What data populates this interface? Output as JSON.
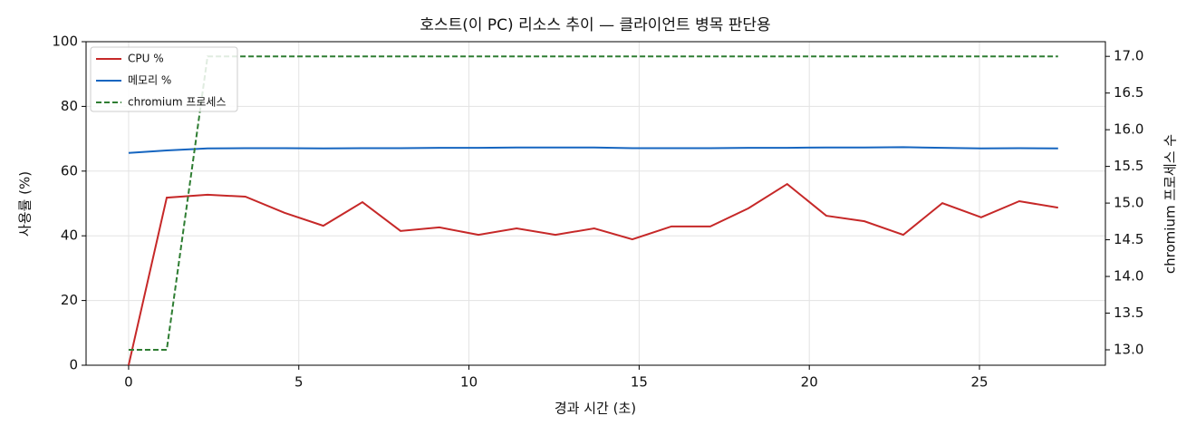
{
  "chart_data": {
    "type": "line",
    "title": "호스트(이 PC) 리소스 추이 — 클라이언트 병목 판단용",
    "xlabel": "경과 시간 (초)",
    "ylabel": "사용률 (%)",
    "y2label": "chromium 프로세스 수",
    "x": [
      0,
      1.12,
      2.32,
      3.43,
      4.58,
      5.72,
      6.87,
      7.99,
      9.13,
      10.28,
      11.4,
      12.54,
      13.68,
      14.8,
      15.95,
      17.09,
      18.21,
      19.35,
      20.5,
      21.62,
      22.76,
      23.91,
      25.05,
      26.17,
      27.31
    ],
    "series": [
      {
        "name": "CPU %",
        "color": "#c62828",
        "linestyle": "solid",
        "values": [
          0,
          51.8,
          52.7,
          52.1,
          47.1,
          43.1,
          50.4,
          41.5,
          42.6,
          40.3,
          42.3,
          40.3,
          42.3,
          38.9,
          42.9,
          42.9,
          48.5,
          56.0,
          46.2,
          44.5,
          40.3,
          50.1,
          45.7,
          50.7,
          48.7
        ]
      },
      {
        "name": "메모리 %",
        "color": "#1565c0",
        "linestyle": "solid",
        "values": [
          65.6,
          66.4,
          67.0,
          67.1,
          67.1,
          67.0,
          67.1,
          67.1,
          67.2,
          67.2,
          67.3,
          67.3,
          67.3,
          67.1,
          67.1,
          67.1,
          67.2,
          67.2,
          67.3,
          67.3,
          67.4,
          67.2,
          67.0,
          67.1,
          67.0
        ]
      },
      {
        "name": "chromium 프로세스",
        "color": "#2e7d32",
        "linestyle": "dashed",
        "axis": "y2",
        "values": [
          13,
          13,
          17,
          17,
          17,
          17,
          17,
          17,
          17,
          17,
          17,
          17,
          17,
          17,
          17,
          17,
          17,
          17,
          17,
          17,
          17,
          17,
          17,
          17,
          17
        ]
      }
    ],
    "xlim": [
      -1.25,
      28.7
    ],
    "xticks": [
      0,
      5,
      10,
      15,
      20,
      25
    ],
    "ylim": [
      0,
      100
    ],
    "yticks": [
      0,
      20,
      40,
      60,
      80,
      100
    ],
    "y2lim": [
      12.79,
      17.2
    ],
    "y2ticks": [
      {
        "value": 13,
        "label": "13.0"
      },
      {
        "value": 13.5,
        "label": "13.5"
      },
      {
        "value": 14,
        "label": "14.0"
      },
      {
        "value": 14.5,
        "label": "14.5"
      },
      {
        "value": 15,
        "label": "15.0"
      },
      {
        "value": 15.5,
        "label": "15.5"
      },
      {
        "value": 16,
        "label": "16.0"
      },
      {
        "value": 16.5,
        "label": "16.5"
      },
      {
        "value": 17,
        "label": "17.0"
      }
    ],
    "grid": true,
    "legend": "upper-left"
  }
}
